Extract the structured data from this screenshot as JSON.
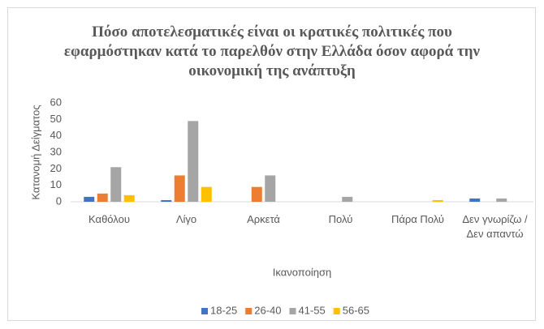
{
  "chart_data": {
    "type": "bar",
    "title": "Πόσο αποτελεσματικές είναι οι κρατικές πολιτικές που εφαρμόστηκαν κατά το παρελθόν στην Ελλάδα όσον αφορά την οικονομική της ανάπτυξη",
    "x_label": "Ικανοποίηση",
    "y_label": "Κατανομή Δείγματος",
    "categories": [
      "Καθόλου",
      "Λίγο",
      "Αρκετά",
      "Πολύ",
      "Πάρα Πολύ",
      "Δεν γνωρίζω / Δεν απαντώ"
    ],
    "series": [
      {
        "name": "18-25",
        "color": "#4472c4",
        "values": [
          3,
          1,
          0,
          0,
          0,
          2
        ]
      },
      {
        "name": "26-40",
        "color": "#ed7d31",
        "values": [
          5,
          16,
          9,
          0,
          0,
          0
        ]
      },
      {
        "name": "41-55",
        "color": "#a5a5a5",
        "values": [
          21,
          49,
          16,
          3,
          0,
          2
        ]
      },
      {
        "name": "56-65",
        "color": "#ffc000",
        "values": [
          4,
          9,
          0,
          0,
          1,
          0
        ]
      }
    ],
    "ylim": [
      0,
      60
    ],
    "yticks": [
      0,
      10,
      20,
      30,
      40,
      50,
      60
    ],
    "grid": false,
    "legend": "bottom"
  }
}
